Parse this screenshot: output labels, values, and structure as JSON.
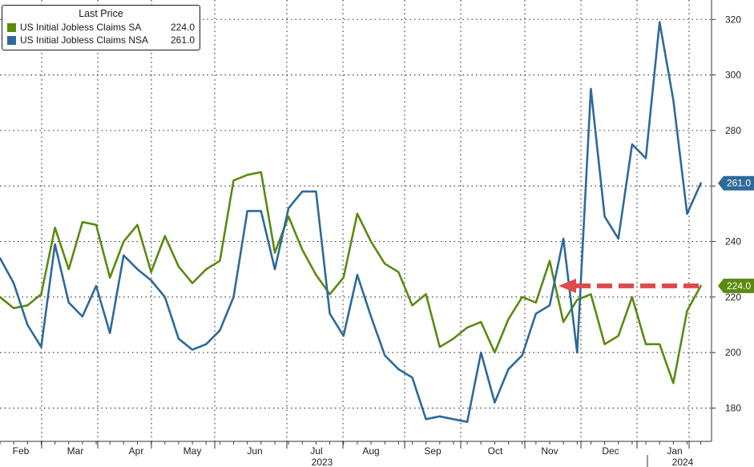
{
  "chart_data": {
    "type": "line",
    "title": "",
    "legend": {
      "title": "Last Price",
      "placement": "top-left"
    },
    "series": [
      {
        "name": "US Initial Jobless Claims SA",
        "last_value": "224.0",
        "color": "#5b8a12",
        "values": [
          220,
          216,
          217,
          221,
          245,
          230,
          247,
          246,
          227,
          240,
          246,
          229,
          242,
          231,
          225,
          230,
          233,
          262,
          264,
          265,
          236,
          249,
          237,
          228,
          221,
          227,
          250,
          240,
          232,
          229,
          217,
          221,
          202,
          205,
          209,
          211,
          200,
          212,
          220,
          218,
          233,
          211,
          219,
          221,
          203,
          206,
          220,
          203,
          203,
          189,
          215,
          224
        ]
      },
      {
        "name": "US Initial Jobless Claims NSA",
        "last_value": "261.0",
        "color": "#2e6a99",
        "values": [
          234,
          225,
          210,
          202,
          239,
          218,
          213,
          224,
          207,
          235,
          230,
          226,
          220,
          205,
          201,
          203,
          208,
          220,
          251,
          251,
          230,
          252,
          258,
          258,
          214,
          206,
          228,
          213,
          199,
          194,
          191,
          176,
          177,
          176,
          175,
          200,
          182,
          194,
          199,
          214,
          217,
          241,
          200,
          295,
          249,
          241,
          275,
          270,
          319,
          291,
          250,
          261
        ]
      }
    ],
    "y_axis": {
      "position": "right",
      "ylim": [
        168,
        327
      ],
      "ticks": [
        "180",
        "200",
        "220",
        "240",
        "260",
        "280",
        "300",
        "320"
      ]
    },
    "x_axis": {
      "month_labels": [
        "Feb",
        "Mar",
        "Apr",
        "May",
        "Jun",
        "Jul",
        "Aug",
        "Sep",
        "Oct",
        "Nov",
        "Dec",
        "Jan"
      ],
      "year_labels": [
        "2023",
        "2024"
      ]
    },
    "grid": true,
    "annotation": {
      "type": "dashed-arrow",
      "color": "#e04a4a",
      "points_to": "SA level 224"
    }
  }
}
